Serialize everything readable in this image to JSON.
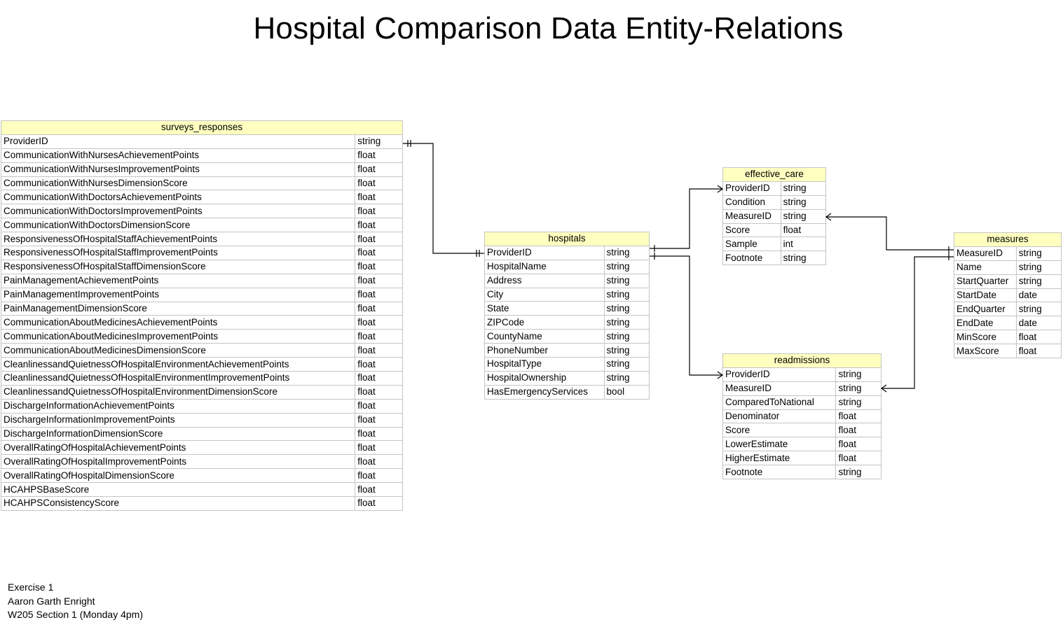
{
  "title": "Hospital Comparison Data Entity-Relations",
  "tables": {
    "surveys_responses": {
      "name": "surveys_responses",
      "fields": [
        [
          "ProviderID",
          "string"
        ],
        [
          "CommunicationWithNursesAchievementPoints",
          "float"
        ],
        [
          "CommunicationWithNursesImprovementPoints",
          "float"
        ],
        [
          "CommunicationWithNursesDimensionScore",
          "float"
        ],
        [
          "CommunicationWithDoctorsAchievementPoints",
          "float"
        ],
        [
          "CommunicationWithDoctorsImprovementPoints",
          "float"
        ],
        [
          "CommunicationWithDoctorsDimensionScore",
          "float"
        ],
        [
          "ResponsivenessOfHospitalStaffAchievementPoints",
          "float"
        ],
        [
          "ResponsivenessOfHospitalStaffImprovementPoints",
          "float"
        ],
        [
          "ResponsivenessOfHospitalStaffDimensionScore",
          "float"
        ],
        [
          "PainManagementAchievementPoints",
          "float"
        ],
        [
          "PainManagementImprovementPoints",
          "float"
        ],
        [
          "PainManagementDimensionScore",
          "float"
        ],
        [
          "CommunicationAboutMedicinesAchievementPoints",
          "float"
        ],
        [
          "CommunicationAboutMedicinesImprovementPoints",
          "float"
        ],
        [
          "CommunicationAboutMedicinesDimensionScore",
          "float"
        ],
        [
          "CleanlinessandQuietnessOfHospitalEnvironmentAchievementPoints",
          "float"
        ],
        [
          "CleanlinessandQuietnessOfHospitalEnvironmentImprovementPoints",
          "float"
        ],
        [
          "CleanlinessandQuietnessOfHospitalEnvironmentDimensionScore",
          "float"
        ],
        [
          "DischargeInformationAchievementPoints",
          "float"
        ],
        [
          "DischargeInformationImprovementPoints",
          "float"
        ],
        [
          "DischargeInformationDimensionScore",
          "float"
        ],
        [
          "OverallRatingOfHospitalAchievementPoints",
          "float"
        ],
        [
          "OverallRatingOfHospitalImprovementPoints",
          "float"
        ],
        [
          "OverallRatingOfHospitalDimensionScore",
          "float"
        ],
        [
          "HCAHPSBaseScore",
          "float"
        ],
        [
          "HCAHPSConsistencyScore",
          "float"
        ]
      ]
    },
    "hospitals": {
      "name": "hospitals",
      "fields": [
        [
          "ProviderID",
          "string"
        ],
        [
          "HospitalName",
          "string"
        ],
        [
          "Address",
          "string"
        ],
        [
          "City",
          "string"
        ],
        [
          "State",
          "string"
        ],
        [
          "ZIPCode",
          "string"
        ],
        [
          "CountyName",
          "string"
        ],
        [
          "PhoneNumber",
          "string"
        ],
        [
          "HospitalType",
          "string"
        ],
        [
          "HospitalOwnership",
          "string"
        ],
        [
          "HasEmergencyServices",
          "bool"
        ]
      ]
    },
    "effective_care": {
      "name": "effective_care",
      "fields": [
        [
          "ProviderID",
          "string"
        ],
        [
          "Condition",
          "string"
        ],
        [
          "MeasureID",
          "string"
        ],
        [
          "Score",
          "float"
        ],
        [
          "Sample",
          "int"
        ],
        [
          "Footnote",
          "string"
        ]
      ]
    },
    "readmissions": {
      "name": "readmissions",
      "fields": [
        [
          "ProviderID",
          "string"
        ],
        [
          "MeasureID",
          "string"
        ],
        [
          "ComparedToNational",
          "string"
        ],
        [
          "Denominator",
          "float"
        ],
        [
          "Score",
          "float"
        ],
        [
          "LowerEstimate",
          "float"
        ],
        [
          "HigherEstimate",
          "float"
        ],
        [
          "Footnote",
          "string"
        ]
      ]
    },
    "measures": {
      "name": "measures",
      "fields": [
        [
          "MeasureID",
          "string"
        ],
        [
          "Name",
          "string"
        ],
        [
          "StartQuarter",
          "string"
        ],
        [
          "StartDate",
          "date"
        ],
        [
          "EndQuarter",
          "string"
        ],
        [
          "EndDate",
          "date"
        ],
        [
          "MinScore",
          "float"
        ],
        [
          "MaxScore",
          "float"
        ]
      ]
    }
  },
  "footer": {
    "line1": "Exercise 1",
    "line2": "Aaron Garth Enright",
    "line3": "W205 Section 1 (Monday 4pm)"
  }
}
